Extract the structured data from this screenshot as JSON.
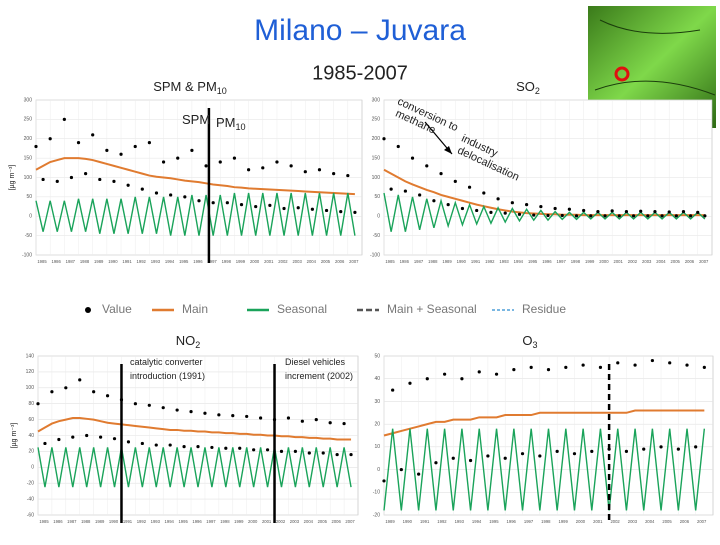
{
  "title": "Milano – Juvara",
  "subtitle": "1985-2007",
  "legend": {
    "items": [
      {
        "name": "Value",
        "color": "#000000",
        "style": "dot"
      },
      {
        "name": "Main",
        "color": "#e07b30",
        "style": "line"
      },
      {
        "name": "Seasonal",
        "color": "#1aa35a",
        "style": "line"
      },
      {
        "name": "Main + Seasonal",
        "color": "#555555",
        "style": "dash"
      },
      {
        "name": "Residue",
        "color": "#4f9fd9",
        "style": "dotline"
      }
    ]
  },
  "chart_data": [
    {
      "type": "line",
      "title": {
        "text": "SPM & PM",
        "sub": "10"
      },
      "ylabel": "[µg m⁻³]",
      "annotations": [
        {
          "text": "SPM"
        },
        {
          "text": "PM",
          "sub": "10"
        }
      ],
      "markers": [
        {
          "x": 1997.2,
          "style": "solid"
        }
      ],
      "xlim": [
        1985,
        2008
      ],
      "ylim": [
        -100,
        300
      ],
      "grid": true,
      "xticks": [
        1985,
        1986,
        1987,
        1988,
        1989,
        1990,
        1991,
        1992,
        1993,
        1994,
        1995,
        1996,
        1997,
        1998,
        1999,
        2000,
        2001,
        2002,
        2003,
        2004,
        2005,
        2006,
        2007
      ],
      "yticks": [
        -100,
        -50,
        0,
        50,
        100,
        150,
        200,
        250,
        300
      ],
      "x": [
        1985,
        1985.5,
        1986,
        1986.5,
        1987,
        1987.5,
        1988,
        1988.5,
        1989,
        1989.5,
        1990,
        1990.5,
        1991,
        1991.5,
        1992,
        1992.5,
        1993,
        1993.5,
        1994,
        1994.5,
        1995,
        1995.5,
        1996,
        1996.5,
        1997,
        1997.5,
        1998,
        1998.5,
        1999,
        1999.5,
        2000,
        2000.5,
        2001,
        2001.5,
        2002,
        2002.5,
        2003,
        2003.5,
        2004,
        2004.5,
        2005,
        2005.5,
        2006,
        2006.5,
        2007,
        2007.5
      ],
      "series": [
        {
          "name": "Value",
          "color": "#000000",
          "style": "dot",
          "values": [
            180,
            95,
            200,
            90,
            250,
            100,
            190,
            110,
            210,
            95,
            170,
            90,
            160,
            80,
            180,
            70,
            190,
            60,
            140,
            55,
            150,
            50,
            170,
            40,
            130,
            35,
            140,
            35,
            150,
            30,
            120,
            25,
            125,
            28,
            140,
            20,
            130,
            22,
            115,
            18,
            120,
            15,
            110,
            12,
            105,
            10
          ]
        },
        {
          "name": "Main",
          "color": "#e07b30",
          "style": "line",
          "values": [
            120,
            130,
            140,
            145,
            150,
            150,
            150,
            148,
            145,
            140,
            135,
            130,
            125,
            120,
            115,
            110,
            105,
            102,
            100,
            98,
            95,
            92,
            90,
            88,
            85,
            82,
            80,
            78,
            75,
            74,
            72,
            71,
            70,
            69,
            68,
            67,
            66,
            65,
            64,
            63,
            62,
            61,
            60,
            59,
            58,
            57
          ]
        },
        {
          "name": "Seasonal",
          "color": "#1aa35a",
          "style": "line",
          "values": [
            40,
            -40,
            40,
            -40,
            40,
            -40,
            45,
            -40,
            45,
            -45,
            45,
            -45,
            45,
            -45,
            50,
            -45,
            50,
            -45,
            50,
            -50,
            50,
            -50,
            55,
            -50,
            55,
            -50,
            55,
            -50,
            60,
            -50,
            60,
            -50,
            60,
            -50,
            60,
            -50,
            60,
            -50,
            60,
            -50,
            60,
            -50,
            60,
            -50,
            60,
            -50
          ]
        }
      ]
    },
    {
      "type": "line",
      "title": {
        "text": "SO",
        "sub": "2"
      },
      "annotations": [
        {
          "text": "conversion to"
        },
        {
          "text": "methane"
        },
        {
          "text": "industry"
        },
        {
          "text": "delocalisation"
        }
      ],
      "markers": [],
      "xlim": [
        1985,
        2008
      ],
      "ylim": [
        -100,
        300
      ],
      "grid": true,
      "xticks": [
        1985,
        1986,
        1987,
        1988,
        1989,
        1990,
        1991,
        1992,
        1993,
        1994,
        1995,
        1996,
        1997,
        1998,
        1999,
        2000,
        2001,
        2002,
        2003,
        2004,
        2005,
        2006,
        2007
      ],
      "yticks": [
        -100,
        -50,
        0,
        50,
        100,
        150,
        200,
        250,
        300
      ],
      "x": [
        1985,
        1985.5,
        1986,
        1986.5,
        1987,
        1987.5,
        1988,
        1988.5,
        1989,
        1989.5,
        1990,
        1990.5,
        1991,
        1991.5,
        1992,
        1992.5,
        1993,
        1993.5,
        1994,
        1994.5,
        1995,
        1995.5,
        1996,
        1996.5,
        1997,
        1997.5,
        1998,
        1998.5,
        1999,
        1999.5,
        2000,
        2000.5,
        2001,
        2001.5,
        2002,
        2002.5,
        2003,
        2003.5,
        2004,
        2004.5,
        2005,
        2005.5,
        2006,
        2006.5,
        2007,
        2007.5
      ],
      "series": [
        {
          "name": "Value",
          "color": "#000000",
          "style": "dot",
          "values": [
            200,
            70,
            180,
            65,
            150,
            55,
            130,
            40,
            110,
            30,
            90,
            20,
            75,
            15,
            60,
            10,
            45,
            8,
            35,
            5,
            30,
            3,
            25,
            2,
            20,
            2,
            18,
            1,
            15,
            1,
            12,
            1,
            14,
            1,
            12,
            1,
            13,
            1,
            12,
            1,
            11,
            1,
            12,
            1,
            10,
            1
          ]
        },
        {
          "name": "Main",
          "color": "#e07b30",
          "style": "line",
          "values": [
            120,
            110,
            100,
            90,
            82,
            75,
            68,
            62,
            55,
            50,
            45,
            40,
            35,
            30,
            26,
            22,
            18,
            15,
            12,
            10,
            8,
            7,
            6,
            5,
            5,
            4,
            4,
            4,
            3,
            3,
            3,
            3,
            3,
            3,
            3,
            3,
            3,
            3,
            3,
            3,
            3,
            3,
            3,
            3,
            3,
            3
          ]
        },
        {
          "name": "Seasonal",
          "color": "#1aa35a",
          "style": "line",
          "values": [
            60,
            -40,
            55,
            -40,
            50,
            -35,
            45,
            -30,
            40,
            -25,
            35,
            -22,
            30,
            -20,
            25,
            -18,
            22,
            -15,
            20,
            -12,
            18,
            -10,
            15,
            -10,
            12,
            -8,
            10,
            -8,
            10,
            -7,
            10,
            -7,
            10,
            -7,
            10,
            -7,
            10,
            -7,
            10,
            -7,
            10,
            -7,
            10,
            -7,
            10,
            -7
          ]
        }
      ]
    },
    {
      "type": "line",
      "title": {
        "text": "NO",
        "sub": "2"
      },
      "ylabel": "[µg m⁻³]",
      "annotations": [
        {
          "text": "catalytic converter"
        },
        {
          "text": "introduction (1991)"
        },
        {
          "text": "Diesel vehicles"
        },
        {
          "text": "increment (2002)"
        }
      ],
      "markers": [
        {
          "x": 1991,
          "style": "solid"
        },
        {
          "x": 2002,
          "style": "solid"
        }
      ],
      "xlim": [
        1985,
        2008
      ],
      "ylim": [
        -60,
        140
      ],
      "grid": true,
      "xticks": [
        1985,
        1986,
        1987,
        1988,
        1989,
        1990,
        1991,
        1992,
        1993,
        1994,
        1995,
        1996,
        1997,
        1998,
        1999,
        2000,
        2001,
        2002,
        2003,
        2004,
        2005,
        2006,
        2007
      ],
      "yticks": [
        -60,
        -40,
        -20,
        0,
        20,
        40,
        60,
        80,
        100,
        120,
        140
      ],
      "x": [
        1985,
        1985.5,
        1986,
        1986.5,
        1987,
        1987.5,
        1988,
        1988.5,
        1989,
        1989.5,
        1990,
        1990.5,
        1991,
        1991.5,
        1992,
        1992.5,
        1993,
        1993.5,
        1994,
        1994.5,
        1995,
        1995.5,
        1996,
        1996.5,
        1997,
        1997.5,
        1998,
        1998.5,
        1999,
        1999.5,
        2000,
        2000.5,
        2001,
        2001.5,
        2002,
        2002.5,
        2003,
        2003.5,
        2004,
        2004.5,
        2005,
        2005.5,
        2006,
        2006.5,
        2007,
        2007.5
      ],
      "series": [
        {
          "name": "Value",
          "color": "#000000",
          "style": "dot",
          "values": [
            80,
            30,
            95,
            35,
            100,
            38,
            110,
            40,
            95,
            38,
            90,
            36,
            85,
            32,
            80,
            30,
            78,
            28,
            75,
            28,
            72,
            26,
            70,
            26,
            68,
            25,
            66,
            24,
            65,
            24,
            64,
            22,
            62,
            22,
            60,
            20,
            62,
            20,
            58,
            18,
            60,
            18,
            56,
            16,
            55,
            16
          ]
        },
        {
          "name": "Main",
          "color": "#e07b30",
          "style": "line",
          "values": [
            45,
            50,
            55,
            58,
            60,
            62,
            62,
            61,
            60,
            58,
            56,
            55,
            54,
            53,
            52,
            51,
            50,
            49,
            48,
            47,
            47,
            46,
            46,
            45,
            45,
            44,
            44,
            43,
            43,
            42,
            42,
            41,
            41,
            40,
            40,
            39,
            39,
            38,
            38,
            37,
            37,
            36,
            36,
            35,
            35,
            35
          ]
        },
        {
          "name": "Seasonal",
          "color": "#1aa35a",
          "style": "line",
          "values": [
            25,
            -25,
            25,
            -25,
            25,
            -25,
            25,
            -25,
            25,
            -25,
            25,
            -25,
            25,
            -25,
            25,
            -25,
            25,
            -25,
            25,
            -25,
            25,
            -25,
            25,
            -25,
            25,
            -25,
            25,
            -25,
            25,
            -25,
            25,
            -25,
            25,
            -25,
            25,
            -25,
            25,
            -25,
            25,
            -25,
            25,
            -25,
            25,
            -25,
            25,
            -25
          ]
        }
      ]
    },
    {
      "type": "line",
      "title": {
        "text": "O",
        "sub": "3"
      },
      "annotations": [],
      "markers": [
        {
          "x": 2002,
          "style": "dash"
        }
      ],
      "xlim": [
        1989,
        2008
      ],
      "ylim": [
        -20,
        50
      ],
      "grid": true,
      "xticks": [
        1989,
        1990,
        1991,
        1992,
        1993,
        1994,
        1995,
        1996,
        1997,
        1998,
        1999,
        2000,
        2001,
        2002,
        2003,
        2004,
        2005,
        2006,
        2007
      ],
      "yticks": [
        -20,
        -10,
        0,
        10,
        20,
        30,
        40,
        50
      ],
      "x": [
        1989,
        1989.5,
        1990,
        1990.5,
        1991,
        1991.5,
        1992,
        1992.5,
        1993,
        1993.5,
        1994,
        1994.5,
        1995,
        1995.5,
        1996,
        1996.5,
        1997,
        1997.5,
        1998,
        1998.5,
        1999,
        1999.5,
        2000,
        2000.5,
        2001,
        2001.5,
        2002,
        2002.5,
        2003,
        2003.5,
        2004,
        2004.5,
        2005,
        2005.5,
        2006,
        2006.5,
        2007,
        2007.5
      ],
      "series": [
        {
          "name": "Value",
          "color": "#000000",
          "style": "dot",
          "values": [
            -5,
            35,
            0,
            38,
            -2,
            40,
            3,
            42,
            5,
            40,
            4,
            43,
            6,
            42,
            5,
            44,
            7,
            45,
            6,
            44,
            8,
            45,
            7,
            46,
            8,
            45,
            9,
            47,
            8,
            46,
            9,
            48,
            10,
            47,
            9,
            46,
            10,
            45
          ]
        },
        {
          "name": "Main",
          "color": "#e07b30",
          "style": "line",
          "values": [
            15,
            16,
            17,
            18,
            19,
            20,
            21,
            21,
            22,
            22,
            22,
            23,
            23,
            23,
            24,
            24,
            24,
            24,
            25,
            25,
            25,
            25,
            25,
            25,
            25,
            25,
            25,
            25,
            25,
            26,
            26,
            26,
            26,
            26,
            26,
            26,
            26,
            26
          ]
        },
        {
          "name": "Seasonal",
          "color": "#1aa35a",
          "style": "line",
          "values": [
            -18,
            18,
            -18,
            18,
            -18,
            18,
            -18,
            18,
            -18,
            18,
            -18,
            18,
            -18,
            18,
            -18,
            18,
            -18,
            18,
            -18,
            18,
            -18,
            18,
            -18,
            18,
            -18,
            18,
            -18,
            18,
            -18,
            18,
            -18,
            18,
            -18,
            18,
            -18,
            18,
            -18,
            18
          ]
        }
      ]
    }
  ]
}
